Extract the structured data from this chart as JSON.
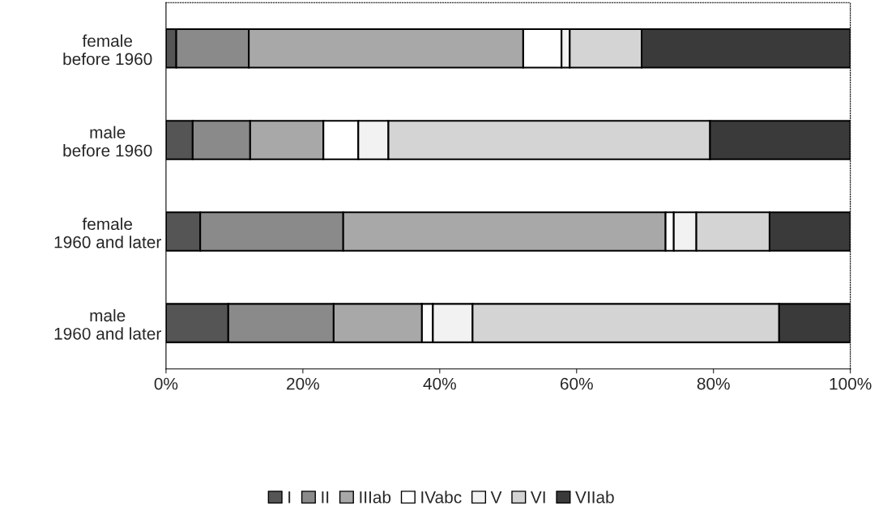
{
  "chart_data": {
    "type": "bar",
    "orientation": "horizontal",
    "stacked": true,
    "categories": [
      "female\nbefore 1960",
      "male\nbefore 1960",
      "female\n1960 and later",
      "male\n1960 and later"
    ],
    "series": [
      {
        "name": "I",
        "color": "#555555",
        "values": [
          1.5,
          3.9,
          5.0,
          9.1
        ]
      },
      {
        "name": "II",
        "color": "#8a8a8a",
        "values": [
          10.6,
          8.4,
          20.9,
          15.4
        ]
      },
      {
        "name": "IIIab",
        "color": "#a8a8a8",
        "values": [
          40.1,
          10.7,
          47.1,
          12.9
        ]
      },
      {
        "name": "IVabc",
        "color": "#ffffff",
        "values": [
          5.6,
          5.1,
          1.2,
          1.6
        ]
      },
      {
        "name": "V",
        "color": "#f2f2f2",
        "values": [
          1.2,
          4.4,
          3.3,
          5.8
        ]
      },
      {
        "name": "VI",
        "color": "#d4d4d4",
        "values": [
          10.5,
          47.0,
          10.7,
          44.8
        ]
      },
      {
        "name": "VIIab",
        "color": "#3a3a3a",
        "values": [
          30.5,
          20.5,
          11.8,
          10.4
        ]
      }
    ],
    "xlim": [
      0,
      100
    ],
    "xticks": [
      {
        "value": 0,
        "label": "0%"
      },
      {
        "value": 20,
        "label": "20%"
      },
      {
        "value": 40,
        "label": "40%"
      },
      {
        "value": 60,
        "label": "60%"
      },
      {
        "value": 80,
        "label": "80%"
      },
      {
        "value": 100,
        "label": "100%"
      }
    ],
    "grid": false,
    "legend": "bottom"
  }
}
